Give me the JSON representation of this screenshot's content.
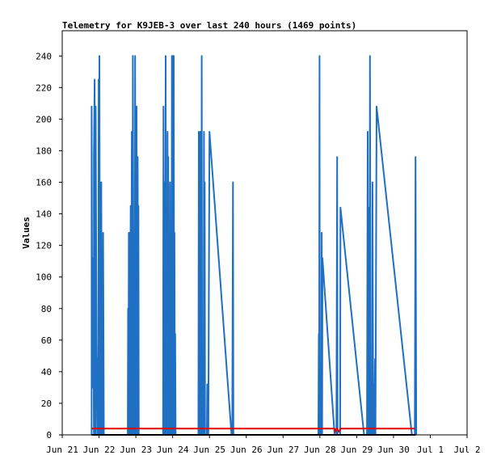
{
  "chart_data": {
    "type": "line",
    "title": "Telemetry for K9JEB-3 over last 240 hours (1469 points)",
    "xlabel": "",
    "ylabel": "Values",
    "ylim": [
      0,
      256
    ],
    "yticks": [
      0,
      20,
      40,
      60,
      80,
      100,
      120,
      140,
      160,
      180,
      200,
      220,
      240
    ],
    "xlim": [
      0,
      11
    ],
    "xticks": [
      {
        "label": "Jun 21",
        "day": 0
      },
      {
        "label": "Jun 22",
        "day": 1
      },
      {
        "label": "Jun 23",
        "day": 2
      },
      {
        "label": "Jun 24",
        "day": 3
      },
      {
        "label": "Jun 25",
        "day": 4
      },
      {
        "label": "Jun 26",
        "day": 5
      },
      {
        "label": "Jun 27",
        "day": 6
      },
      {
        "label": "Jun 28",
        "day": 7
      },
      {
        "label": "Jun 29",
        "day": 8
      },
      {
        "label": "Jun 30",
        "day": 9
      },
      {
        "label": "Jul 1",
        "day": 10
      },
      {
        "label": "Jul 2",
        "day": 11
      }
    ],
    "grid": false,
    "colors": {
      "blue": "#1f6fc2",
      "red": "#e00000",
      "black": "#000000"
    },
    "series": [
      {
        "color": "#1f6fc2",
        "points": [
          [
            0.8,
            0
          ],
          [
            0.8,
            208
          ],
          [
            0.82,
            30
          ],
          [
            0.84,
            112
          ],
          [
            0.86,
            0
          ],
          [
            0.86,
            176
          ],
          [
            0.88,
            225
          ],
          [
            0.9,
            0
          ],
          [
            0.91,
            208
          ],
          [
            0.93,
            60
          ],
          [
            0.95,
            0
          ],
          [
            0.96,
            48
          ],
          [
            0.98,
            0
          ],
          [
            0.99,
            225
          ],
          [
            1.0,
            0
          ],
          [
            1.01,
            240
          ],
          [
            1.03,
            0
          ],
          [
            1.04,
            128
          ],
          [
            1.05,
            0
          ],
          [
            1.06,
            160
          ],
          [
            1.08,
            0
          ],
          [
            1.09,
            104
          ],
          [
            1.1,
            0
          ],
          [
            1.11,
            128
          ],
          [
            1.13,
            0
          ],
          [
            1.78,
            0
          ],
          [
            1.79,
            80
          ],
          [
            1.8,
            0
          ],
          [
            1.81,
            128
          ],
          [
            1.82,
            0
          ],
          [
            1.83,
            128
          ],
          [
            1.84,
            0
          ],
          [
            1.86,
            145
          ],
          [
            1.87,
            0
          ],
          [
            1.89,
            192
          ],
          [
            1.9,
            33
          ],
          [
            1.91,
            0
          ],
          [
            1.92,
            240
          ],
          [
            1.94,
            33
          ],
          [
            1.95,
            0
          ],
          [
            1.96,
            64
          ],
          [
            1.97,
            0
          ],
          [
            1.98,
            240
          ],
          [
            1.99,
            48
          ],
          [
            2.0,
            0
          ],
          [
            2.02,
            208
          ],
          [
            2.03,
            16
          ],
          [
            2.04,
            0
          ],
          [
            2.05,
            176
          ],
          [
            2.06,
            0
          ],
          [
            2.07,
            145
          ],
          [
            2.08,
            0
          ],
          [
            2.74,
            0
          ],
          [
            2.75,
            208
          ],
          [
            2.76,
            0
          ],
          [
            2.78,
            160
          ],
          [
            2.79,
            0
          ],
          [
            2.81,
            240
          ],
          [
            2.82,
            0
          ],
          [
            2.84,
            144
          ],
          [
            2.85,
            0
          ],
          [
            2.86,
            192
          ],
          [
            2.87,
            80
          ],
          [
            2.88,
            176
          ],
          [
            2.89,
            0
          ],
          [
            2.91,
            64
          ],
          [
            2.92,
            0
          ],
          [
            2.93,
            160
          ],
          [
            2.94,
            24
          ],
          [
            2.95,
            0
          ],
          [
            2.96,
            48
          ],
          [
            2.97,
            0
          ],
          [
            2.98,
            240
          ],
          [
            3.0,
            0
          ],
          [
            3.01,
            240
          ],
          [
            3.02,
            0
          ],
          [
            3.03,
            240
          ],
          [
            3.04,
            0
          ],
          [
            3.05,
            128
          ],
          [
            3.06,
            0
          ],
          [
            3.07,
            64
          ],
          [
            3.08,
            0
          ],
          [
            3.7,
            0
          ],
          [
            3.71,
            192
          ],
          [
            3.72,
            0
          ],
          [
            3.73,
            48
          ],
          [
            3.74,
            0
          ],
          [
            3.75,
            192
          ],
          [
            3.76,
            0
          ],
          [
            3.78,
            0
          ],
          [
            3.79,
            240
          ],
          [
            3.8,
            0
          ],
          [
            3.84,
            0
          ],
          [
            3.85,
            192
          ],
          [
            3.86,
            0
          ],
          [
            3.87,
            160
          ],
          [
            3.88,
            0
          ],
          [
            3.93,
            0
          ],
          [
            3.94,
            32
          ],
          [
            3.95,
            0
          ],
          [
            3.96,
            24
          ],
          [
            3.97,
            0
          ],
          [
            4.0,
            192
          ],
          [
            4.6,
            0
          ],
          [
            4.62,
            0
          ],
          [
            4.64,
            160
          ],
          [
            4.65,
            0
          ],
          [
            6.96,
            0
          ],
          [
            6.97,
            64
          ],
          [
            6.98,
            0
          ],
          [
            6.99,
            240
          ],
          [
            7.0,
            0
          ],
          [
            7.04,
            0
          ],
          [
            7.05,
            128
          ],
          [
            7.06,
            0
          ],
          [
            7.07,
            112
          ],
          [
            7.4,
            0
          ],
          [
            7.45,
            0
          ],
          [
            7.47,
            176
          ],
          [
            7.48,
            0
          ],
          [
            7.55,
            0
          ],
          [
            7.56,
            144
          ],
          [
            8.2,
            0
          ],
          [
            8.28,
            0
          ],
          [
            8.3,
            192
          ],
          [
            8.31,
            0
          ],
          [
            8.32,
            144
          ],
          [
            8.33,
            0
          ],
          [
            8.35,
            0
          ],
          [
            8.36,
            240
          ],
          [
            8.38,
            0
          ],
          [
            8.42,
            0
          ],
          [
            8.43,
            160
          ],
          [
            8.45,
            0
          ],
          [
            8.47,
            32
          ],
          [
            8.48,
            0
          ],
          [
            8.5,
            48
          ],
          [
            8.51,
            0
          ],
          [
            8.54,
            208
          ],
          [
            9.5,
            0
          ],
          [
            9.58,
            0
          ],
          [
            9.6,
            176
          ],
          [
            9.62,
            0
          ]
        ]
      },
      {
        "color": "#e00000",
        "points": [
          [
            0.8,
            4
          ],
          [
            7.4,
            4
          ],
          [
            7.42,
            2
          ],
          [
            7.46,
            4
          ],
          [
            7.52,
            2
          ],
          [
            7.56,
            4
          ],
          [
            9.58,
            4
          ]
        ]
      },
      {
        "color": "#000000",
        "points": [
          [
            0.8,
            0
          ],
          [
            9.6,
            0
          ]
        ]
      }
    ]
  }
}
